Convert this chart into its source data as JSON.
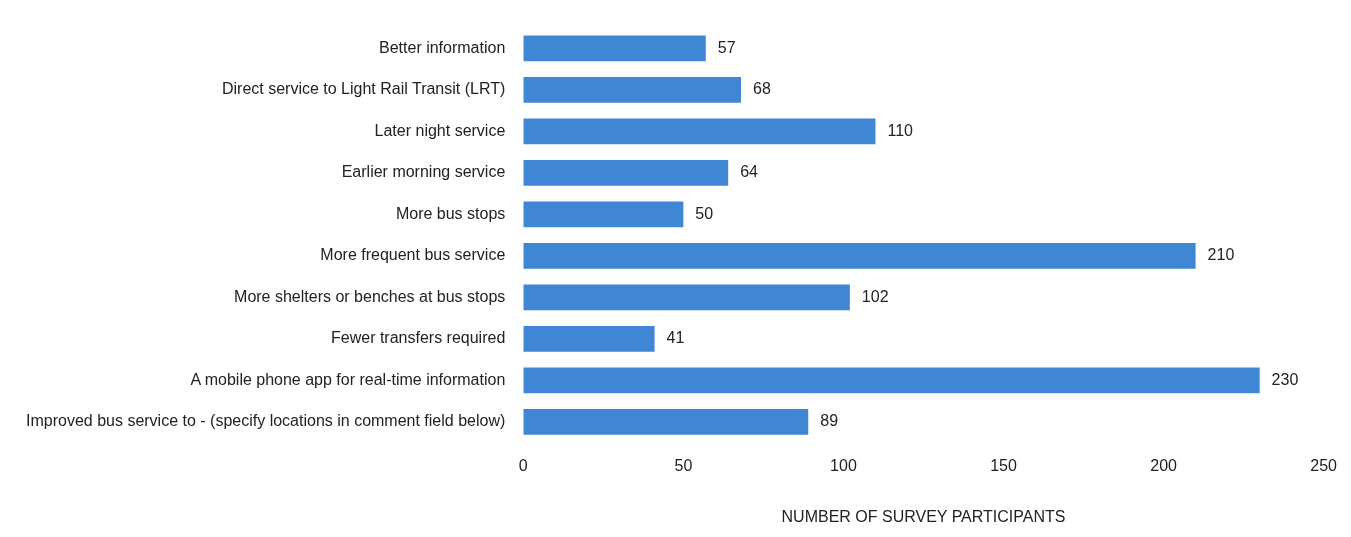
{
  "chart_data": {
    "type": "bar",
    "orientation": "horizontal",
    "categories": [
      "Better information",
      "Direct service to Light Rail Transit (LRT)",
      "Later night service",
      "Earlier morning service",
      "More bus stops",
      "More frequent bus service",
      "More shelters or benches at bus stops",
      "Fewer transfers required",
      "A mobile phone app for real-time information",
      "Improved bus service to - (specify locations in comment field below)"
    ],
    "values": [
      57,
      68,
      110,
      64,
      50,
      210,
      102,
      41,
      230,
      89
    ],
    "color": "#3f86d4",
    "xlabel": "NUMBER OF SURVEY PARTICIPANTS",
    "xlim": [
      0,
      250
    ],
    "xticks": [
      0,
      50,
      100,
      150,
      200,
      250
    ],
    "grid": false,
    "data_labels": true
  }
}
